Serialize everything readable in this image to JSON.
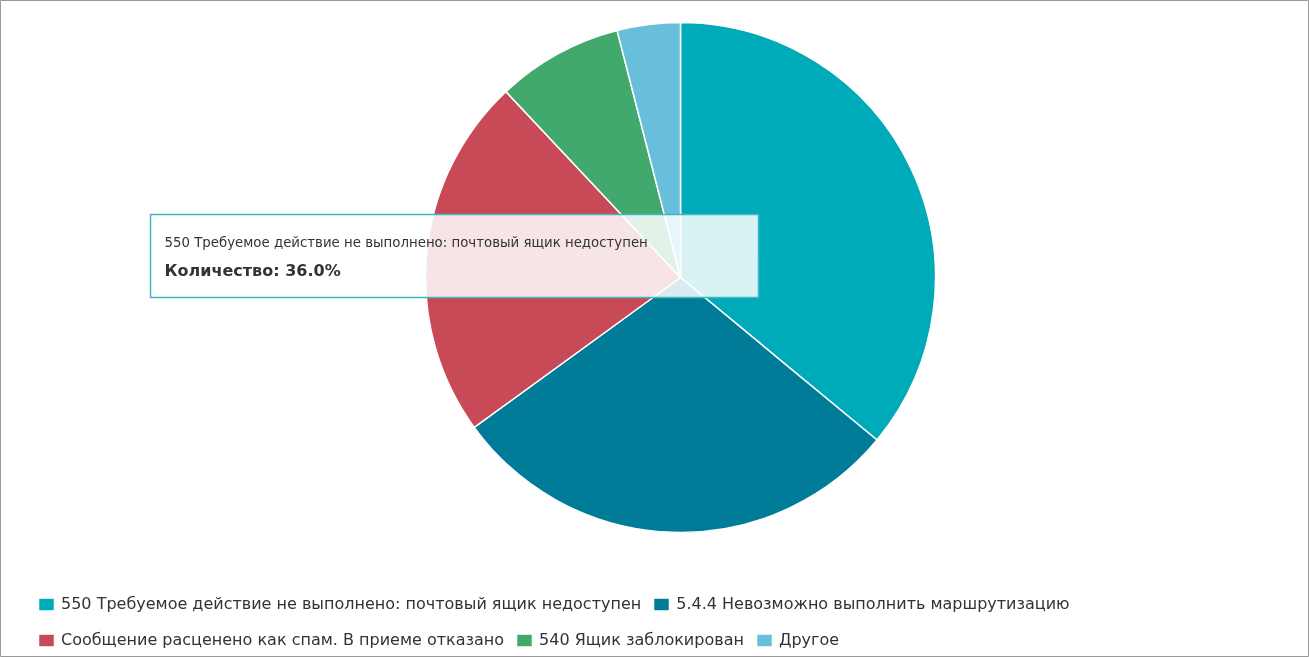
{
  "chart_data": {
    "type": "pie",
    "categories": [
      "550 Требуемое действие не выполнено: почтовый ящик недоступен",
      "5.4.4 Невозможно выполнить маршрутизацию",
      "Сообщение расценено как спам. В приеме отказано",
      "540 Ящик заблокирован",
      "Другое"
    ],
    "values": [
      36,
      29,
      23,
      8,
      4
    ],
    "colors": [
      "#00abb9",
      "#007c99",
      "#c94a57",
      "#41a96c",
      "#67bfdc"
    ],
    "annotations": [
      "550 Требуемое действие не выполнено: почтовый ящик недоступен",
      "Количество: 36.0%"
    ],
    "legend": "bottom"
  }
}
